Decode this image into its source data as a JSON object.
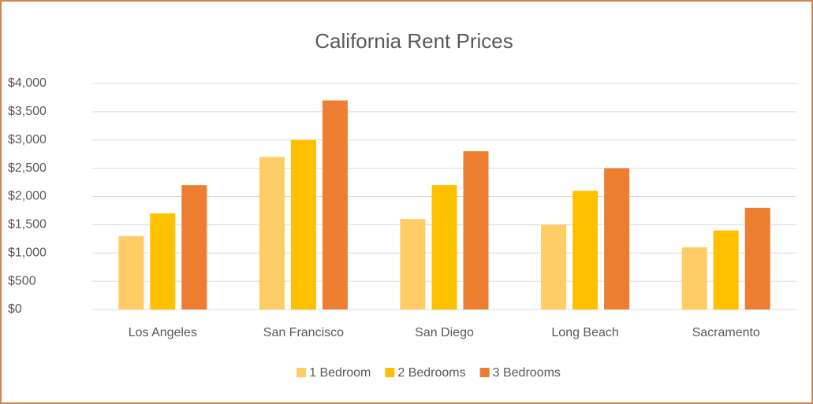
{
  "chart_data": {
    "type": "bar",
    "title": "California Rent Prices",
    "categories": [
      "Los Angeles",
      "San Francisco",
      "San Diego",
      "Long Beach",
      "Sacramento"
    ],
    "series": [
      {
        "name": "1 Bedroom",
        "color": "#ffcc66",
        "values": [
          1300,
          2700,
          1600,
          1500,
          1100
        ]
      },
      {
        "name": "2 Bedrooms",
        "color": "#ffc000",
        "values": [
          1700,
          3000,
          2200,
          2100,
          1400
        ]
      },
      {
        "name": "3 Bedrooms",
        "color": "#ed7d31",
        "values": [
          2200,
          3700,
          2800,
          2500,
          1800
        ]
      }
    ],
    "ylim": [
      0,
      4000
    ],
    "yticks": [
      {
        "value": 0,
        "label": "$0"
      },
      {
        "value": 500,
        "label": "$500"
      },
      {
        "value": 1000,
        "label": "$1,000"
      },
      {
        "value": 1500,
        "label": "$1,500"
      },
      {
        "value": 2000,
        "label": "$2,000"
      },
      {
        "value": 2500,
        "label": "$2,500"
      },
      {
        "value": 3000,
        "label": "$3,000"
      },
      {
        "value": 3500,
        "label": "$3,500"
      },
      {
        "value": 4000,
        "label": "$4,000"
      }
    ],
    "grid": true,
    "legend": "bottom"
  }
}
